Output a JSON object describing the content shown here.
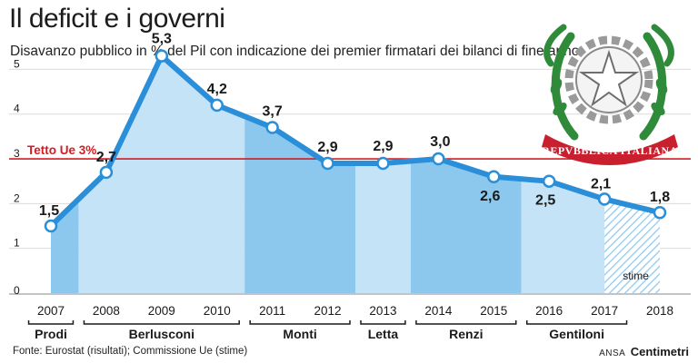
{
  "header": {
    "title": "Il deficit e i governi",
    "subtitle": "Disavanzo pubblico in % del Pil con indicazione dei premier firmatari dei bilanci di fine anno"
  },
  "emblem": {
    "text": "REPVBBLICA ITALIANA"
  },
  "footer": {
    "source": "Fonte: Eurostat (risultati); Commissione Ue (stime)",
    "brand_prefix": "ANSA",
    "brand_name": "Centimetri"
  },
  "chart_data": {
    "type": "area",
    "x": [
      "2007",
      "2008",
      "2009",
      "2010",
      "2011",
      "2012",
      "2013",
      "2014",
      "2015",
      "2016",
      "2017",
      "2018"
    ],
    "values": [
      1.5,
      2.7,
      5.3,
      4.2,
      3.7,
      2.9,
      2.9,
      3.0,
      2.6,
      2.5,
      2.1,
      1.8
    ],
    "value_labels": [
      "1,5",
      "2,7",
      "5,3",
      "4,2",
      "3,7",
      "2,9",
      "2,9",
      "3,0",
      "2,6",
      "2,5",
      "2,1",
      "1,8"
    ],
    "y_ticks": [
      0,
      1,
      2,
      3,
      4,
      5
    ],
    "ylim": [
      0,
      5.9
    ],
    "reference_line": {
      "value": 3,
      "label": "Tetto Ue 3%",
      "color": "#d71920"
    },
    "premiers": [
      {
        "name": "Prodi",
        "from": 0,
        "to": 0
      },
      {
        "name": "Berlusconi",
        "from": 1,
        "to": 3
      },
      {
        "name": "Monti",
        "from": 4,
        "to": 5
      },
      {
        "name": "Letta",
        "from": 6,
        "to": 6
      },
      {
        "name": "Renzi",
        "from": 7,
        "to": 8
      },
      {
        "name": "Gentiloni",
        "from": 9,
        "to": 10
      }
    ],
    "estimate": {
      "label": "stime",
      "from": 10,
      "to": 11
    },
    "grid": true,
    "colors": {
      "line": "#2a8fd8",
      "fill_dark": "#8cc8ee",
      "fill_light": "#c4e3f7",
      "emblem_green": "#2f8a3a",
      "emblem_red": "#c8202e"
    }
  }
}
